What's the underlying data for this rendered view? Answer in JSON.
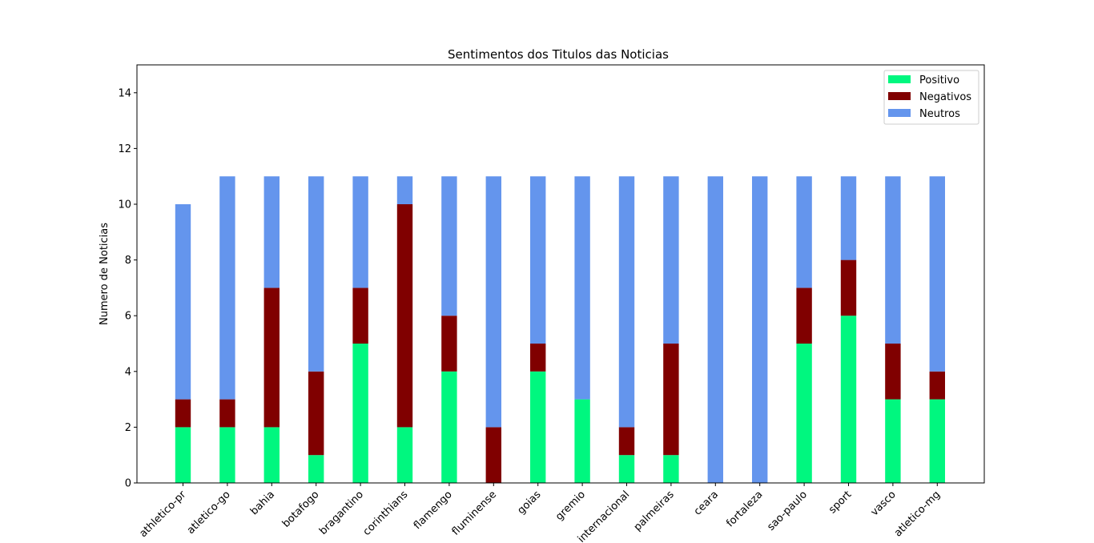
{
  "chart_data": {
    "type": "bar",
    "stacked": true,
    "title": "Sentimentos dos Titulos das Noticias",
    "xlabel": "",
    "ylabel": "Numero de Noticias",
    "ylim": [
      0,
      15
    ],
    "yticks": [
      0,
      2,
      4,
      6,
      8,
      10,
      12,
      14
    ],
    "grid": false,
    "legend_position": "top-right",
    "categories": [
      "athletico-pr",
      "atletico-go",
      "bahia",
      "botafogo",
      "bragantino",
      "corinthians",
      "flamengo",
      "fluminense",
      "goias",
      "gremio",
      "internacional",
      "palmeiras",
      "ceara",
      "fortaleza",
      "sao-paulo",
      "sport",
      "vasco",
      "atletico-mg"
    ],
    "series": [
      {
        "name": "Positivo",
        "color": "#00f77f",
        "values": [
          2,
          2,
          2,
          1,
          5,
          2,
          4,
          0,
          4,
          3,
          1,
          1,
          0,
          0,
          5,
          6,
          3,
          3
        ]
      },
      {
        "name": "Negativos",
        "color": "#800000",
        "values": [
          1,
          1,
          5,
          3,
          2,
          8,
          2,
          2,
          1,
          0,
          1,
          4,
          0,
          0,
          2,
          2,
          2,
          1
        ]
      },
      {
        "name": "Neutros",
        "color": "#6495ed",
        "values": [
          7,
          8,
          4,
          7,
          4,
          1,
          5,
          9,
          6,
          8,
          9,
          6,
          11,
          11,
          4,
          3,
          6,
          7
        ]
      }
    ]
  }
}
